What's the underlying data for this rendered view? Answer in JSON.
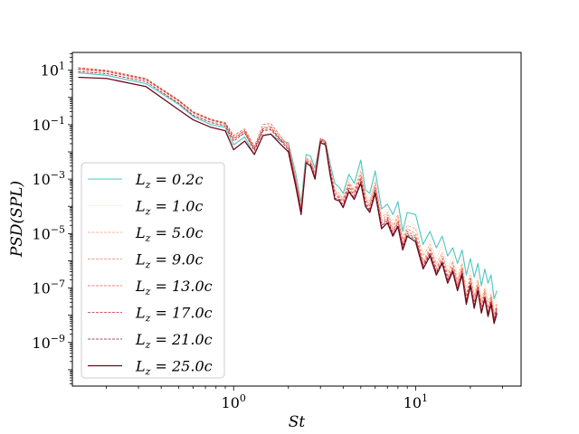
{
  "chart_data": {
    "type": "line",
    "title": "",
    "xlabel": "St",
    "ylabel": "PSD(SPL)",
    "xscale": "log",
    "yscale": "log",
    "xlim": [
      0.13,
      38
    ],
    "ylim": [
      2.5e-11,
      45
    ],
    "x_ticks": [
      {
        "value": 1,
        "base": "10",
        "exp": "0"
      },
      {
        "value": 10,
        "base": "10",
        "exp": "1"
      }
    ],
    "y_ticks": [
      {
        "value": 10,
        "base": "10",
        "exp": "1"
      },
      {
        "value": 0.1,
        "base": "10",
        "exp": "−1"
      },
      {
        "value": 0.001,
        "base": "10",
        "exp": "−3"
      },
      {
        "value": 1e-05,
        "base": "10",
        "exp": "−5"
      },
      {
        "value": 1e-07,
        "base": "10",
        "exp": "−7"
      },
      {
        "value": 1e-09,
        "base": "10",
        "exp": "−9"
      }
    ],
    "legend_position": "bottom-left",
    "x": [
      0.14,
      0.2,
      0.33,
      0.5,
      0.6,
      0.75,
      0.9,
      1.0,
      1.15,
      1.3,
      1.45,
      1.6,
      1.8,
      2.0,
      2.2,
      2.35,
      2.5,
      2.65,
      2.8,
      3.0,
      3.2,
      3.4,
      3.6,
      3.8,
      4.0,
      4.3,
      4.6,
      5.0,
      5.3,
      5.6,
      6.0,
      6.5,
      7.0,
      7.5,
      8.0,
      8.5,
      9.0,
      10.0,
      11.0,
      12.0,
      13.0,
      14.0,
      15.0,
      16.0,
      17.0,
      18.0,
      19.0,
      20.0,
      21.0,
      22.0,
      23.0,
      24.0,
      25.0,
      26.0,
      27.0,
      28.0
    ],
    "series": [
      {
        "name": "L_z = 0.2c",
        "label_main": "L",
        "label_sub": "z",
        "label_rest": " = 0.2c",
        "color": "#4cc4c4",
        "style": "solid",
        "width": 1.1,
        "values": [
          8,
          6.5,
          3.2,
          0.55,
          0.2,
          0.1,
          0.08,
          0.018,
          0.035,
          0.008,
          0.04,
          0.045,
          0.025,
          0.022,
          0.0015,
          0.00014,
          0.008,
          0.007,
          0.0025,
          0.03,
          0.025,
          0.0035,
          0.0007,
          0.0005,
          0.0003,
          0.0015,
          0.0007,
          0.005,
          0.0004,
          0.0003,
          0.002,
          8e-05,
          0.00012,
          5e-05,
          0.00015,
          1.2e-05,
          6e-05,
          5e-05,
          4e-06,
          1.2e-05,
          3e-06,
          8e-06,
          1.5e-06,
          3e-06,
          8e-07,
          2.5e-06,
          3e-07,
          1.2e-06,
          2.5e-07,
          8e-07,
          1.2e-07,
          5e-07,
          1.5e-07,
          3e-07,
          4e-08,
          8e-08
        ]
      },
      {
        "name": "L_z = 1.0c",
        "label_main": "L",
        "label_sub": "z",
        "label_rest": " = 1.0c",
        "color": "#f8c8a8",
        "style": "dotted",
        "width": 0.8,
        "values": [
          10,
          8,
          4,
          0.6,
          0.22,
          0.12,
          0.09,
          0.02,
          0.04,
          0.009,
          0.045,
          0.05,
          0.028,
          0.02,
          0.0012,
          0.00012,
          0.007,
          0.006,
          0.002,
          0.028,
          0.022,
          0.003,
          0.0005,
          0.0004,
          0.00025,
          0.001,
          0.0005,
          0.003,
          0.0003,
          0.0002,
          0.001,
          5e-05,
          8e-05,
          3e-05,
          8e-05,
          8e-06,
          3e-05,
          2e-05,
          2e-06,
          6e-06,
          1.2e-06,
          4e-06,
          6e-07,
          1.5e-06,
          3e-07,
          1.2e-06,
          1e-07,
          5e-07,
          8e-08,
          3e-07,
          4e-08,
          1.5e-07,
          5e-08,
          1e-07,
          2e-08,
          5e-08
        ]
      },
      {
        "name": "L_z = 5.0c",
        "label_main": "L",
        "label_sub": "z",
        "label_rest": " = 5.0c",
        "color": "#f4a07c",
        "style": "dashed",
        "width": 0.8,
        "values": [
          11,
          9,
          4.5,
          0.7,
          0.25,
          0.14,
          0.1,
          0.03,
          0.05,
          0.012,
          0.06,
          0.07,
          0.03,
          0.02,
          0.001,
          0.0001,
          0.006,
          0.005,
          0.0018,
          0.025,
          0.02,
          0.0025,
          0.0004,
          0.0003,
          0.0002,
          0.0008,
          0.0004,
          0.002,
          0.00025,
          0.00015,
          0.0008,
          4e-05,
          6e-05,
          2e-05,
          5e-05,
          6e-06,
          2e-05,
          1.5e-05,
          1.5e-06,
          4e-06,
          8e-07,
          2e-06,
          4e-07,
          1e-06,
          2e-07,
          8e-07,
          6e-08,
          3e-07,
          5e-08,
          2e-07,
          3e-08,
          1e-07,
          3e-08,
          6e-08,
          1.2e-08,
          3e-08
        ]
      },
      {
        "name": "L_z = 9.0c",
        "label_main": "L",
        "label_sub": "z",
        "label_rest": " = 9.0c",
        "color": "#ef8062",
        "style": "dashed",
        "width": 0.8,
        "values": [
          12,
          9.5,
          4.8,
          0.75,
          0.28,
          0.15,
          0.11,
          0.035,
          0.06,
          0.014,
          0.08,
          0.09,
          0.035,
          0.018,
          0.0009,
          9e-05,
          0.0055,
          0.0045,
          0.0016,
          0.03,
          0.022,
          0.0022,
          0.00035,
          0.00025,
          0.00018,
          0.0007,
          0.00035,
          0.0015,
          0.0002,
          0.00012,
          0.0006,
          3e-05,
          5e-05,
          1.5e-05,
          4e-05,
          5e-06,
          1.5e-05,
          1e-05,
          1e-06,
          3e-06,
          6e-07,
          1.5e-06,
          3e-07,
          8e-07,
          1.5e-07,
          6e-07,
          5e-08,
          2.5e-07,
          4e-08,
          1.5e-07,
          2.5e-08,
          8e-08,
          2e-08,
          5e-08,
          1e-08,
          2.5e-08
        ]
      },
      {
        "name": "L_z = 13.0c",
        "label_main": "L",
        "label_sub": "z",
        "label_rest": " = 13.0c",
        "color": "#e65a4a",
        "style": "dashed",
        "width": 0.8,
        "values": [
          12.5,
          10,
          5,
          0.8,
          0.3,
          0.16,
          0.12,
          0.04,
          0.07,
          0.016,
          0.1,
          0.11,
          0.04,
          0.016,
          0.0008,
          8e-05,
          0.005,
          0.004,
          0.0014,
          0.032,
          0.025,
          0.002,
          0.0003,
          0.00022,
          0.00015,
          0.0006,
          0.0003,
          0.0012,
          0.00018,
          0.0001,
          0.0005,
          2.5e-05,
          4e-05,
          1.2e-05,
          3e-05,
          4e-06,
          1.2e-05,
          8e-06,
          8e-07,
          2.5e-06,
          5e-07,
          1.2e-06,
          2.5e-07,
          6e-07,
          1.2e-07,
          5e-07,
          4e-08,
          2e-07,
          3e-08,
          1.2e-07,
          2e-08,
          6e-08,
          1.5e-08,
          4e-08,
          8e-09,
          2e-08
        ]
      },
      {
        "name": "L_z = 17.0c",
        "label_main": "L",
        "label_sub": "z",
        "label_rest": " = 17.0c",
        "color": "#c02a3e",
        "style": "dashed",
        "width": 0.8,
        "values": [
          11,
          9,
          4.5,
          0.75,
          0.28,
          0.15,
          0.11,
          0.03,
          0.06,
          0.013,
          0.07,
          0.08,
          0.03,
          0.014,
          0.0007,
          7e-05,
          0.0045,
          0.0036,
          0.0012,
          0.028,
          0.022,
          0.0018,
          0.00025,
          0.0002,
          0.00012,
          0.0005,
          0.00025,
          0.001,
          0.00015,
          8e-05,
          0.0004,
          2e-05,
          3.5e-05,
          1e-05,
          2.5e-05,
          3.5e-06,
          1e-05,
          7e-06,
          7e-07,
          2e-06,
          4e-07,
          1e-06,
          2e-07,
          5e-07,
          1e-07,
          4e-07,
          3.5e-08,
          1.5e-07,
          2.5e-08,
          1e-07,
          1.5e-08,
          5e-08,
          1.2e-08,
          3.5e-08,
          7e-09,
          1.8e-08
        ]
      },
      {
        "name": "L_z = 21.0c",
        "label_main": "L",
        "label_sub": "z",
        "label_rest": " = 21.0c",
        "color": "#8c1428",
        "style": "dashed",
        "width": 0.8,
        "values": [
          9,
          7.5,
          3.8,
          0.6,
          0.22,
          0.12,
          0.09,
          0.025,
          0.05,
          0.011,
          0.06,
          0.065,
          0.028,
          0.012,
          0.0006,
          6e-05,
          0.004,
          0.0032,
          0.001,
          0.025,
          0.02,
          0.0015,
          0.0002,
          0.00018,
          0.0001,
          0.0004,
          0.0002,
          0.0008,
          0.00012,
          7e-05,
          0.00035,
          1.8e-05,
          3e-05,
          9e-06,
          2e-05,
          3e-06,
          9e-06,
          6e-06,
          6e-07,
          1.8e-06,
          3.5e-07,
          9e-07,
          1.8e-07,
          4.5e-07,
          9e-08,
          3.5e-07,
          3e-08,
          1.3e-07,
          2e-08,
          9e-08,
          1.3e-08,
          4.5e-08,
          1e-08,
          3e-08,
          6e-09,
          1.5e-08
        ]
      },
      {
        "name": "L_z = 25.0c",
        "label_main": "L",
        "label_sub": "z",
        "label_rest": " = 25.0c",
        "color": "#6a0a1c",
        "style": "solid",
        "width": 1.3,
        "values": [
          5.5,
          5,
          2.5,
          0.35,
          0.15,
          0.08,
          0.06,
          0.012,
          0.025,
          0.008,
          0.04,
          0.045,
          0.02,
          0.01,
          0.0005,
          5e-05,
          0.004,
          0.003,
          0.001,
          0.022,
          0.018,
          0.0013,
          0.00018,
          0.00016,
          9e-05,
          0.00035,
          0.00018,
          0.0007,
          0.0001,
          6e-05,
          0.0003,
          1.5e-05,
          2.5e-05,
          8e-06,
          1.8e-05,
          2.5e-06,
          8e-06,
          5e-06,
          5e-07,
          1.5e-06,
          3e-07,
          8e-07,
          1.5e-07,
          4e-07,
          8e-08,
          3e-07,
          2.5e-08,
          1.2e-07,
          1.8e-08,
          8e-08,
          1.2e-08,
          4e-08,
          9e-09,
          2.5e-08,
          5e-09,
          1.2e-08
        ]
      }
    ]
  }
}
